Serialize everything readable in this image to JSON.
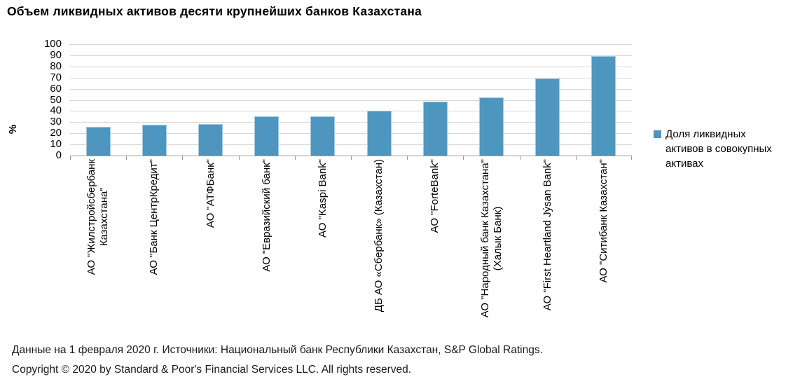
{
  "title": "Объем ликвидных активов десяти крупнейших банков Казахстана",
  "chart_data": {
    "type": "bar",
    "title": "Объем ликвидных активов десяти крупнейших банков Казахстана",
    "categories": [
      "АО \"Жилстройсбербанк Казахстана\"",
      "АО \"Банк ЦентрКредит\"",
      "АО \"АТФБанк\"",
      "АО \"Евразийский банк\"",
      "АО \"Kaspi Bank\"",
      "ДБ АО «Сбербанк» (Казахстан)",
      "АО \"ForteBank\"",
      "АО \"Народный банк Казахстана\" (Халык Банк)",
      "АО \"First Heartland Jýsan Bank\"",
      "АО \"Ситибанк Казахстан\""
    ],
    "categories_wrapped": [
      [
        "АО \"Жилстройсбербанк",
        "Казахстана\""
      ],
      [
        "АО \"Банк ЦентрКредит\""
      ],
      [
        "АО \"АТФБанк\""
      ],
      [
        "АО \"Евразийский банк\""
      ],
      [
        "АО \"Kaspi Bank\""
      ],
      [
        "ДБ АО «Сбербанк» (Казахстан)"
      ],
      [
        "АО \"ForteBank\""
      ],
      [
        "АО \"Народный банк Казахстана\"",
        "(Халык Банк)"
      ],
      [
        "АО \"First Heartland Jýsan Bank\""
      ],
      [
        "АО \"Ситибанк Казахстан\""
      ]
    ],
    "series": [
      {
        "name": "Доля ликвидных активов в совокупных активах",
        "values": [
          26,
          27.5,
          28.5,
          35,
          35.5,
          40,
          48.5,
          52.5,
          69,
          89
        ]
      }
    ],
    "xlabel": "",
    "ylabel": "%",
    "ylim": [
      0,
      100
    ],
    "ytick_step": 10,
    "grid": true,
    "legend_position": "right"
  },
  "legend": {
    "lines": [
      "Доля ликвидных",
      "активов в совокупных",
      "активах"
    ]
  },
  "footer": {
    "line1": "Данные на 1 февраля 2020 г. Источники: Национальный банк Республики Казахстан, S&P Global Ratings.",
    "line2": "Copyright © 2020 by Standard & Poor's Financial Services LLC. All rights reserved."
  },
  "colors": {
    "bar": "#4E96BF",
    "bar_border": "#A6C9DE",
    "grid": "#D6D6D6",
    "axis": "#999999",
    "text": "#000000"
  }
}
